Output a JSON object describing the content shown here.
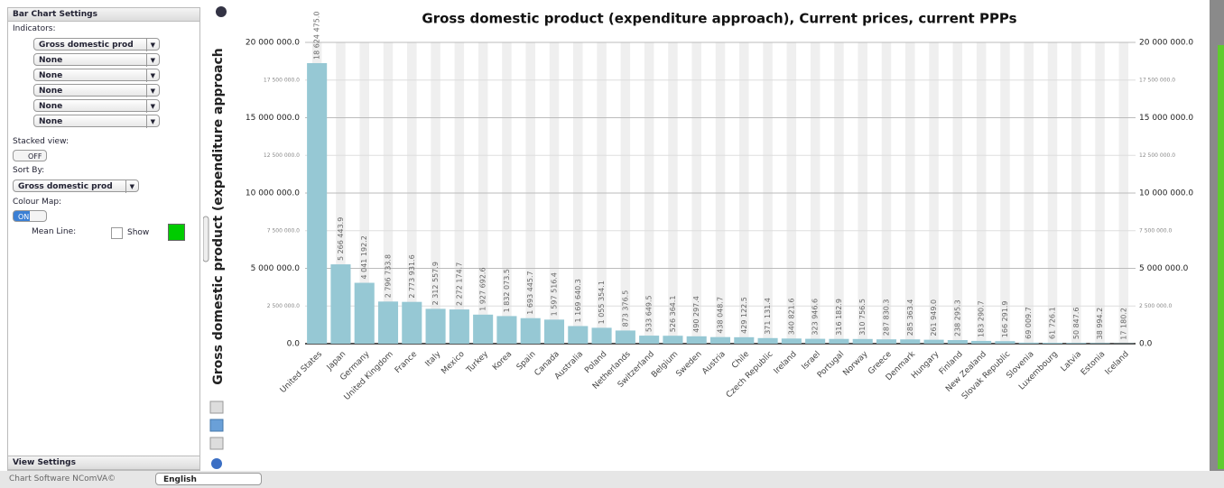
{
  "panel": {
    "title": "Bar Chart Settings",
    "indicators_label": "Indicators:",
    "indicators": [
      "Gross domestic prod",
      "None",
      "None",
      "None",
      "None",
      "None"
    ],
    "stacked_label": "Stacked view:",
    "stacked_toggle": "OFF",
    "sort_label": "Sort By:",
    "sort_value": "Gross domestic prod",
    "colour_map_label": "Colour Map:",
    "colour_map_toggle": "ON",
    "mean_line_label": "Mean Line:",
    "mean_line_show": "Show",
    "bottom_title": "View Settings"
  },
  "footer": {
    "software": "Chart Software NComVA©",
    "language": "English"
  },
  "chart_data": {
    "type": "bar",
    "title": "Gross domestic product (expenditure approach), Current prices, current PPPs",
    "y_label": "Gross domestic product (expenditure approach",
    "color": "#96c8d4",
    "grid": true,
    "categories": [
      "United States",
      "Japan",
      "Germany",
      "United Kingdom",
      "France",
      "Italy",
      "Mexico",
      "Turkey",
      "Korea",
      "Spain",
      "Canada",
      "Australia",
      "Poland",
      "Netherlands",
      "Switzerland",
      "Belgium",
      "Sweden",
      "Austria",
      "Chile",
      "Czech Republic",
      "Ireland",
      "Israel",
      "Portugal",
      "Norway",
      "Greece",
      "Denmark",
      "Hungary",
      "Finland",
      "New Zealand",
      "Slovak Republic",
      "Slovenia",
      "Luxembourg",
      "Latvia",
      "Estonia",
      "Iceland"
    ],
    "values": [
      18624475.0,
      5266443.9,
      4041192.2,
      2796733.8,
      2773931.6,
      2312557.9,
      2272174.7,
      1927692.6,
      1832073.5,
      1693445.7,
      1597516.4,
      1169640.3,
      1055354.1,
      873376.5,
      533649.5,
      526364.1,
      490297.4,
      438048.7,
      429122.5,
      371131.4,
      340821.6,
      323946.6,
      316182.9,
      310756.5,
      287830.3,
      285363.4,
      261949.0,
      238295.3,
      183290.7,
      166291.9,
      69009.7,
      61726.1,
      50847.6,
      38994.2,
      17180.2
    ],
    "value_labels": [
      "18 624 475.0",
      "5 266 443.9",
      "4 041 192.2",
      "2 796 733.8",
      "2 773 931.6",
      "2 312 557.9",
      "2 272 174.7",
      "1 927 692.6",
      "1 832 073.5",
      "1 693 445.7",
      "1 597 516.4",
      "1 169 640.3",
      "1 055 354.1",
      "873 376.5",
      "533 649.5",
      "526 364.1",
      "490 297.4",
      "438 048.7",
      "429 122.5",
      "371 131.4",
      "340 821.6",
      "323 946.6",
      "316 182.9",
      "310 756.5",
      "287 830.3",
      "285 363.4",
      "261 949.0",
      "238 295.3",
      "183 290.7",
      "166 291.9",
      "69 009.7",
      "61 726.1",
      "50 847.6",
      "38 994.2",
      "17 180.2"
    ],
    "ylim": [
      0,
      20000000
    ],
    "yticks": [
      {
        "value": 0,
        "label": "0.0"
      },
      {
        "value": 2500000,
        "label": "2 500 000.0"
      },
      {
        "value": 5000000,
        "label": "5 000 000.0"
      },
      {
        "value": 7500000,
        "label": "7 500 000.0"
      },
      {
        "value": 10000000,
        "label": "10 000 000.0"
      },
      {
        "value": 12500000,
        "label": "12 500 000.0"
      },
      {
        "value": 15000000,
        "label": "15 000 000.0"
      },
      {
        "value": 17500000,
        "label": "17 500 000.0"
      },
      {
        "value": 20000000,
        "label": "20 000 000.0"
      }
    ]
  }
}
